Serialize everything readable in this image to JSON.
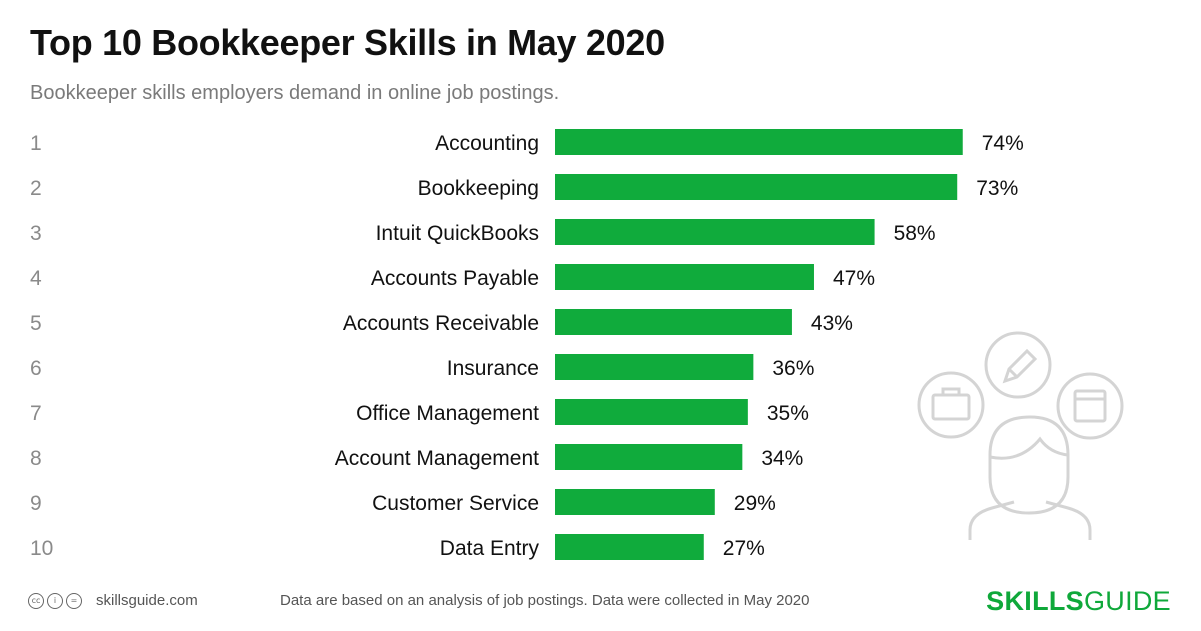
{
  "title": "Top 10 Bookkeeper Skills in May 2020",
  "subtitle": "Bookkeeper skills employers demand in online job postings.",
  "footer": {
    "site": "skillsguide.com",
    "note": "Data are based on an analysis of job postings. Data were collected in May 2020",
    "brand_bold": "SKILLS",
    "brand_regular": "GUIDE"
  },
  "colors": {
    "bar": "#10ab3c",
    "brand": "#0fa83a"
  },
  "chart_data": {
    "type": "bar",
    "orientation": "horizontal",
    "ranks": [
      "1",
      "2",
      "3",
      "4",
      "5",
      "6",
      "7",
      "8",
      "9",
      "10"
    ],
    "categories": [
      "Accounting",
      "Bookkeeping",
      "Intuit QuickBooks",
      "Accounts Payable",
      "Accounts Receivable",
      "Insurance",
      "Office Management",
      "Account Management",
      "Customer Service",
      "Data Entry"
    ],
    "values": [
      74,
      73,
      58,
      47,
      43,
      36,
      35,
      34,
      29,
      27
    ],
    "value_labels": [
      "74%",
      "73%",
      "58%",
      "47%",
      "43%",
      "36%",
      "35%",
      "34%",
      "29%",
      "27%"
    ],
    "unit": "%",
    "xlim": [
      0,
      100
    ],
    "grid": false,
    "legend": "none"
  }
}
